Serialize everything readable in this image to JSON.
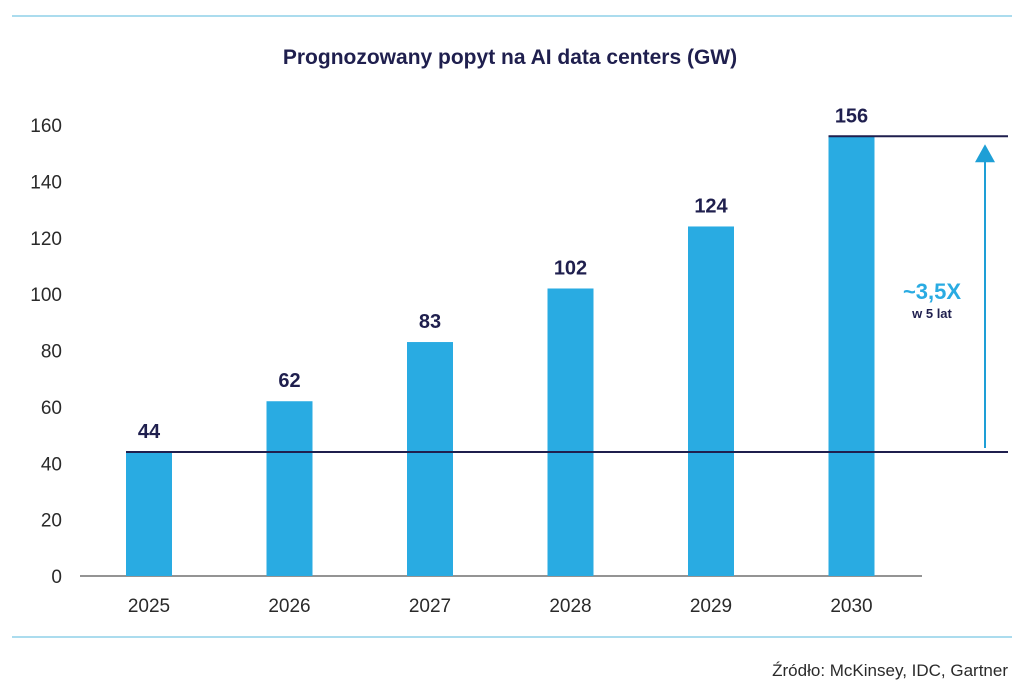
{
  "colors": {
    "bar": "#29abe2",
    "navy": "#1f1f4e",
    "rule": "#8fd0e8",
    "axis": "#2a2a2a",
    "arrow": "#1e9fd6"
  },
  "chart_data": {
    "type": "bar",
    "title": "Prognozowany popyt na AI data centers (GW)",
    "categories": [
      "2025",
      "2026",
      "2027",
      "2028",
      "2029",
      "2030"
    ],
    "values": [
      44,
      62,
      83,
      102,
      124,
      156
    ],
    "data_labels": [
      "44",
      "62",
      "83",
      "102",
      "124",
      "156"
    ],
    "ylim": [
      0,
      160
    ],
    "yticks": [
      "0",
      "20",
      "40",
      "60",
      "80",
      "100",
      "120",
      "140",
      "160"
    ],
    "grid": false,
    "reference_lines": [
      44,
      156
    ],
    "annotation": {
      "main": "~3,5X",
      "sub": "w 5 lat"
    }
  },
  "source": "Źródło: McKinsey, IDC, Gartner"
}
